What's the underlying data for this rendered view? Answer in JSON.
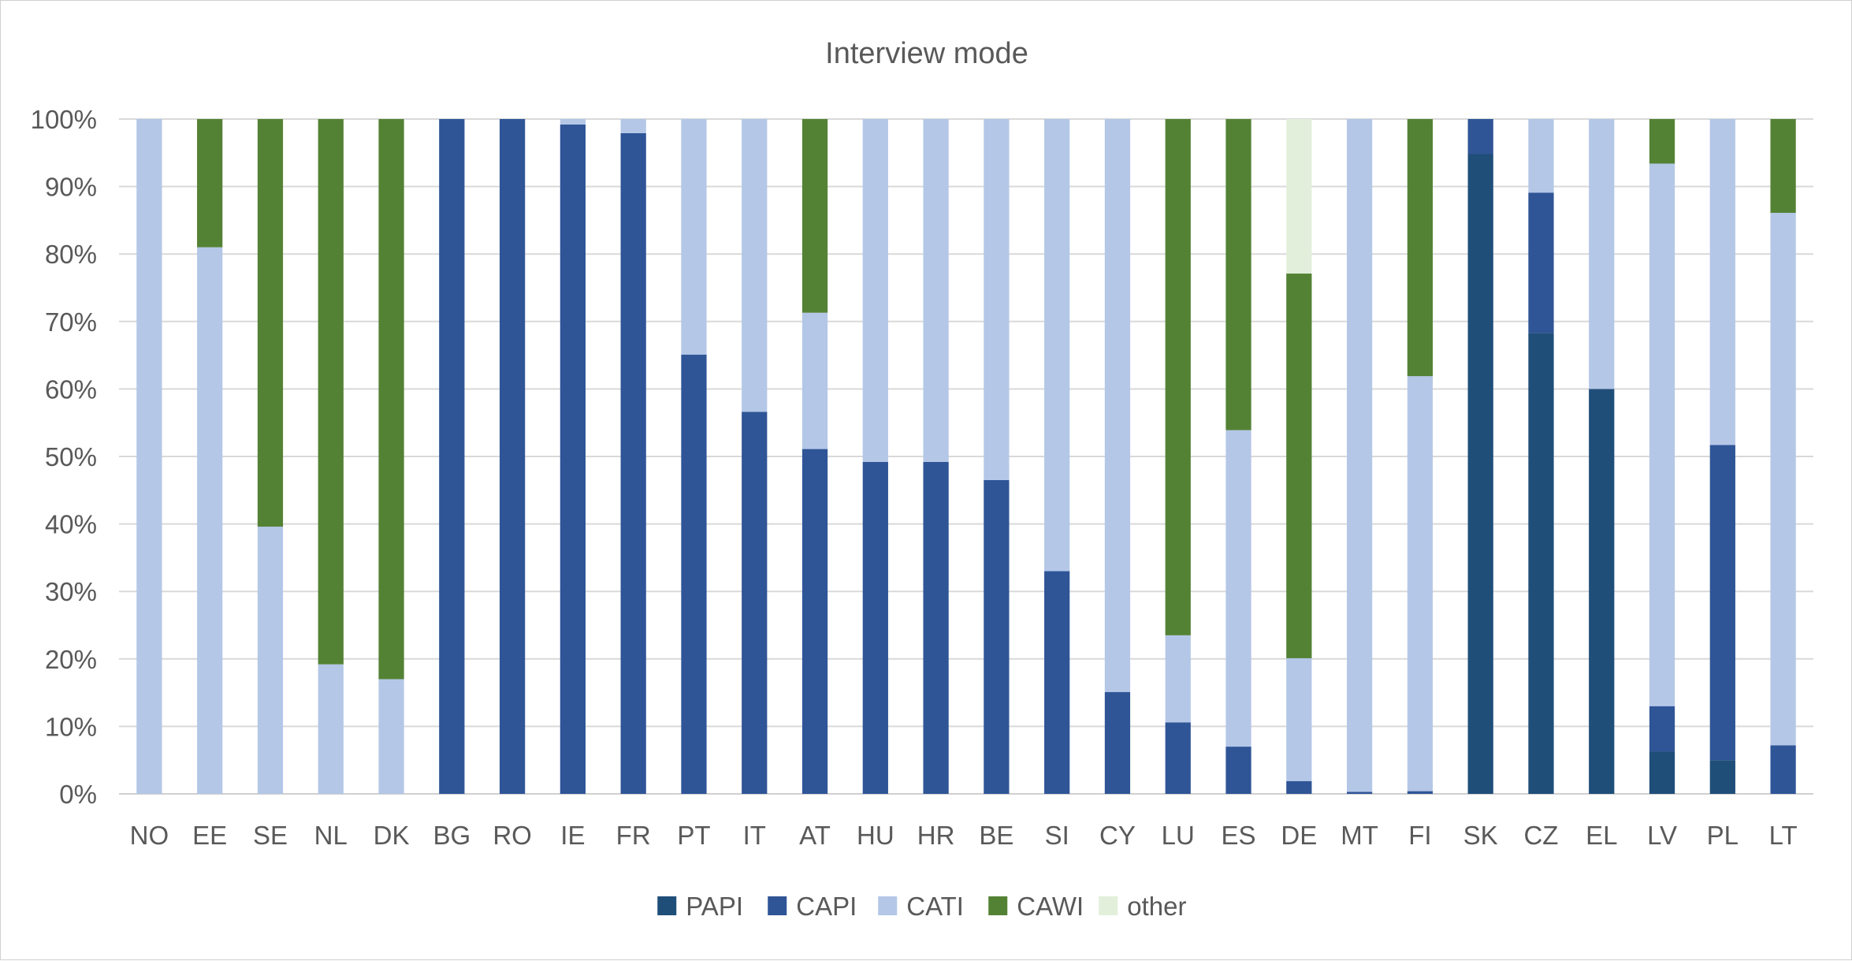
{
  "chart_data": {
    "type": "bar",
    "stacked": true,
    "percent": true,
    "title": "Interview mode",
    "xlabel": "",
    "ylabel": "",
    "ylim": [
      0,
      100
    ],
    "y_ticks": [
      "0%",
      "10%",
      "20%",
      "30%",
      "40%",
      "50%",
      "60%",
      "70%",
      "80%",
      "90%",
      "100%"
    ],
    "grid": true,
    "legend_position": "bottom",
    "categories": [
      "NO",
      "EE",
      "SE",
      "NL",
      "DK",
      "BG",
      "RO",
      "IE",
      "FR",
      "PT",
      "IT",
      "AT",
      "HU",
      "HR",
      "BE",
      "SI",
      "CY",
      "LU",
      "ES",
      "DE",
      "MT",
      "FI",
      "SK",
      "CZ",
      "EL",
      "LV",
      "PL",
      "LT"
    ],
    "series": [
      {
        "name": "PAPI",
        "color": "#1f4e79",
        "values": [
          0,
          0,
          0,
          0,
          0,
          0,
          0,
          0,
          0,
          0,
          0,
          0,
          0,
          0,
          0,
          0,
          0,
          0,
          0,
          0,
          0,
          0,
          94.8,
          68.3,
          60,
          6.3,
          5,
          0
        ]
      },
      {
        "name": "CAPI",
        "color": "#2f5597",
        "values": [
          0,
          0,
          0,
          0,
          0,
          100,
          100,
          99.2,
          97.9,
          65.1,
          56.6,
          51.1,
          49.2,
          49.2,
          46.5,
          33,
          15.1,
          10.6,
          7,
          1.9,
          0.3,
          0.4,
          5.2,
          20.8,
          0,
          6.7,
          46.7,
          7.2
        ]
      },
      {
        "name": "CATI",
        "color": "#b4c7e7",
        "values": [
          100,
          81,
          39.6,
          19.2,
          17,
          0,
          0,
          0.8,
          2.1,
          34.9,
          43.4,
          20.2,
          50.8,
          50.8,
          53.5,
          67,
          84.9,
          12.9,
          46.9,
          18.2,
          99.7,
          61.5,
          0,
          10.9,
          40,
          80.4,
          48.3,
          78.9
        ]
      },
      {
        "name": "CAWI",
        "color": "#548235",
        "values": [
          0,
          19,
          60.4,
          80.8,
          83,
          0,
          0,
          0,
          0,
          0,
          0,
          28.7,
          0,
          0,
          0,
          0,
          0,
          76.5,
          46.1,
          57,
          0,
          38.1,
          0,
          0,
          0,
          6.6,
          0,
          13.9
        ]
      },
      {
        "name": "other",
        "color": "#e2efda",
        "values": [
          0,
          0,
          0,
          0,
          0,
          0,
          0,
          0,
          0,
          0,
          0,
          0,
          0,
          0,
          0,
          0,
          0,
          0,
          0,
          22.9,
          0,
          0,
          0,
          0,
          0,
          0,
          0,
          0
        ]
      }
    ],
    "colors": {
      "grid": "#d9d9d9",
      "axis": "#d0d0d0",
      "text": "#595959"
    }
  }
}
